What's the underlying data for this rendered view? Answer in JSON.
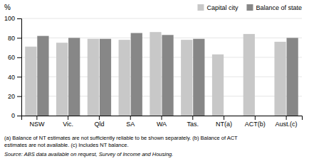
{
  "chart_data": {
    "type": "bar",
    "ylabel": "%",
    "categories": [
      "NSW",
      "Vic.",
      "Qld",
      "SA",
      "WA",
      "Tas.",
      "NT(a)",
      "ACT(b)",
      "Aust.(c)"
    ],
    "series": [
      {
        "name": "Capital city",
        "color": "#c8c8c8",
        "values": [
          71,
          75,
          79,
          78,
          86,
          78,
          63,
          84,
          76
        ]
      },
      {
        "name": "Balance of state",
        "color": "#878787",
        "values": [
          82,
          80,
          79,
          85,
          83,
          79,
          null,
          null,
          80
        ]
      }
    ],
    "ylim": [
      0,
      100
    ],
    "yticks": [
      0,
      20,
      40,
      60,
      80,
      100
    ],
    "grid": true,
    "legend": "upper right",
    "annotations": [
      "(a) Balance of NT estimates are not sufficiently reliable to be shown separately.  (b) Balance of ACT",
      "estimates are not available.  (c) Includes NT balance.",
      "Source: ABS data available on request, Survey of Income and Housing."
    ]
  }
}
